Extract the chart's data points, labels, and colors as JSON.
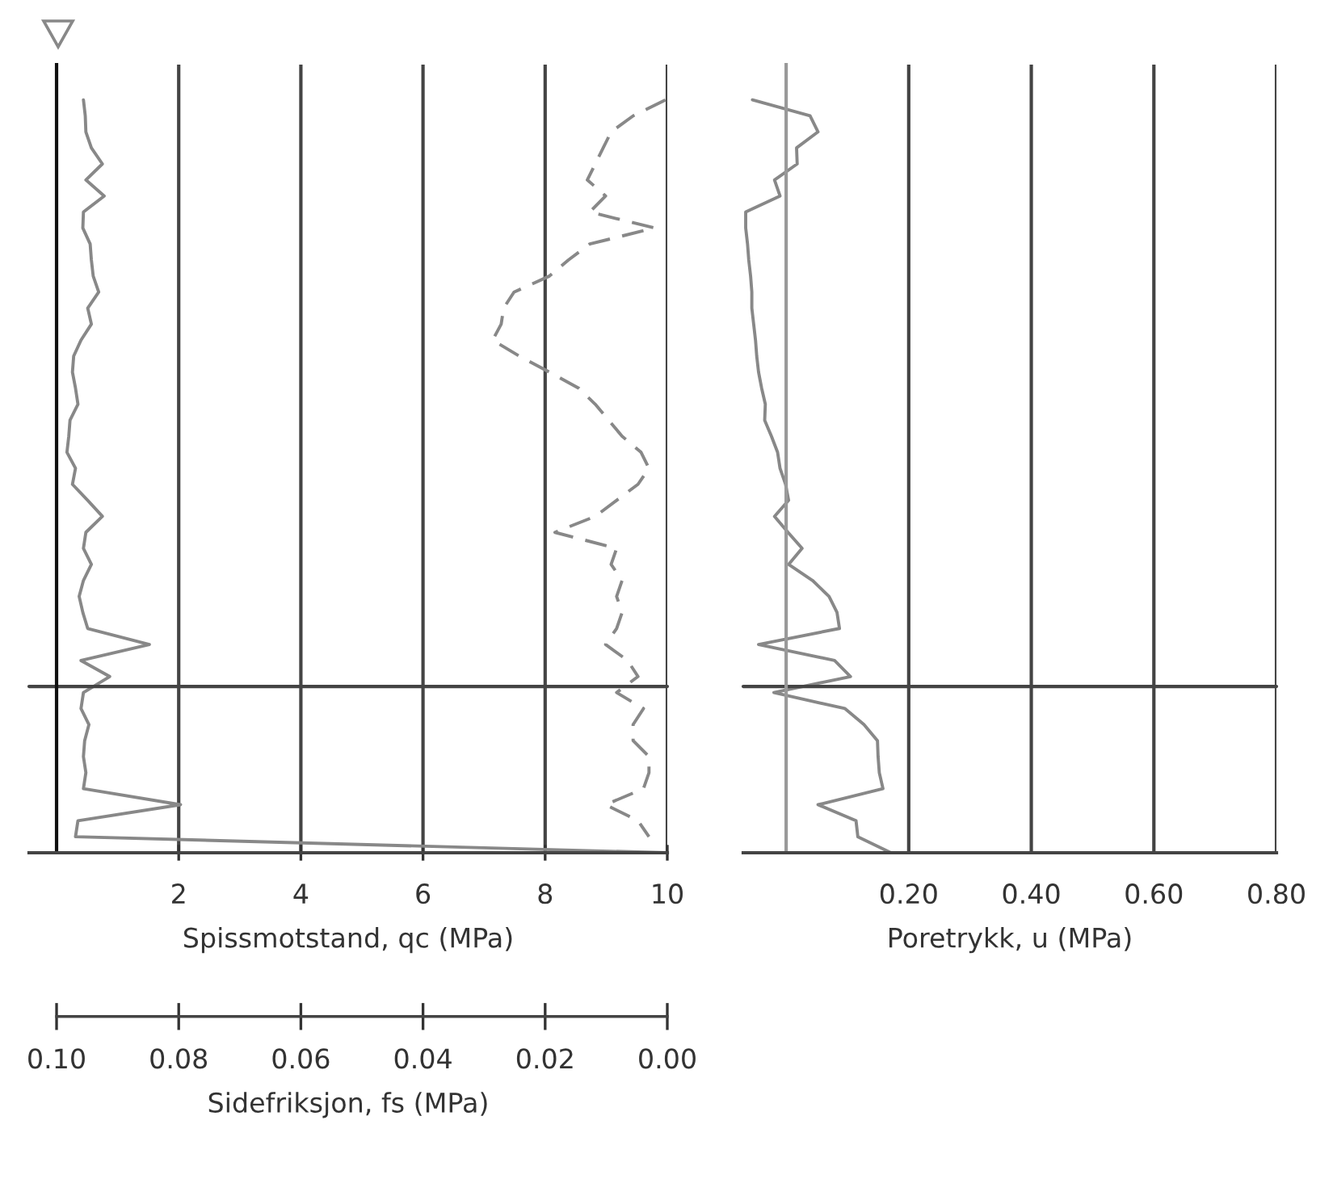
{
  "chart_data": [
    {
      "type": "line",
      "orientation": "horizontal",
      "categories": [
        null,
        null,
        null,
        null,
        null,
        null,
        null,
        null,
        null,
        null,
        null,
        null,
        null,
        null,
        null,
        null,
        null,
        null,
        null,
        null,
        null,
        null,
        null,
        null,
        null,
        null,
        null,
        null,
        null,
        null,
        null,
        null,
        null,
        null,
        null,
        null,
        null,
        null,
        null,
        null,
        null,
        null,
        null,
        null,
        null,
        null,
        null,
        null
      ],
      "series": [
        {
          "color": "#888888",
          "line_style": "solid",
          "values": [
            0.44,
            0.47,
            0.48,
            0.57,
            0.75,
            0.48,
            0.78,
            0.44,
            0.43,
            0.55,
            0.57,
            0.6,
            0.69,
            0.51,
            0.57,
            0.4,
            0.28,
            0.26,
            0.31,
            0.35,
            0.22,
            0.2,
            0.17,
            0.31,
            0.26,
            0.51,
            0.75,
            0.48,
            0.44,
            0.57,
            0.44,
            0.37,
            0.43,
            0.51,
            1.52,
            0.4,
            0.87,
            0.44,
            0.4,
            0.53,
            0.46,
            0.44,
            0.48,
            0.44,
            2.03,
            0.35,
            0.31,
            10
          ]
        },
        {
          "color": "#888888",
          "line_style": "dashed",
          "axis": "x2",
          "values": [
            0.0003,
            0.0056,
            0.0092,
            0.0105,
            0.0118,
            0.0131,
            0.0101,
            0.0127,
            0.0021,
            0.0127,
            0.0162,
            0.0193,
            0.0251,
            0.0268,
            0.0272,
            0.0286,
            0.0242,
            0.0193,
            0.0145,
            0.0118,
            0.0096,
            0.0074,
            0.0043,
            0.003,
            0.0048,
            0.0083,
            0.0118,
            0.0184,
            0.0083,
            0.0092,
            0.0074,
            0.0083,
            0.0074,
            0.0083,
            0.0101,
            0.0065,
            0.0048,
            0.0083,
            0.0039,
            0.0056,
            0.0056,
            0.003,
            0.003,
            0.0039,
            0.0101,
            0.0048,
            0.003,
            null
          ]
        }
      ],
      "xlim": [
        -0.45,
        10
      ],
      "xticks": [
        2,
        4,
        6,
        8,
        10
      ],
      "xlabel": "Spissmotstand, qc (MPa)",
      "x2lim": [
        0.1045,
        0.0
      ],
      "x2ticks": [
        {
          "value": 0.1,
          "label": "0.10"
        },
        {
          "value": 0.08,
          "label": "0.08"
        },
        {
          "value": 0.06,
          "label": "0.06"
        },
        {
          "value": 0.04,
          "label": "0.04"
        },
        {
          "value": 0.02,
          "label": "0.02"
        },
        {
          "value": 0.0,
          "label": "0.00"
        }
      ],
      "x2label": "Sidefriksjon, fs (MPa)",
      "grid": "x"
    },
    {
      "type": "line",
      "orientation": "horizontal",
      "categories": [
        null,
        null,
        null,
        null,
        null,
        null,
        null,
        null,
        null,
        null,
        null,
        null,
        null,
        null,
        null,
        null,
        null,
        null,
        null,
        null,
        null,
        null,
        null,
        null,
        null,
        null,
        null,
        null,
        null,
        null,
        null,
        null,
        null,
        null,
        null,
        null,
        null,
        null,
        null,
        null,
        null,
        null,
        null,
        null,
        null,
        null,
        null,
        null
      ],
      "series": [
        {
          "color": "#888888",
          "line_style": "solid",
          "values": [
            -0.055,
            0.039,
            0.052,
            0.017,
            0.018,
            -0.019,
            -0.01,
            -0.066,
            -0.066,
            -0.063,
            -0.061,
            -0.058,
            -0.056,
            -0.056,
            -0.053,
            -0.05,
            -0.048,
            -0.045,
            -0.04,
            -0.034,
            -0.035,
            -0.024,
            -0.014,
            -0.01,
            -0.001,
            0.004,
            -0.019,
            0.003,
            0.026,
            0.004,
            0.043,
            0.07,
            0.083,
            0.087,
            -0.045,
            0.079,
            0.105,
            -0.02,
            0.096,
            0.127,
            0.149,
            0.15,
            0.152,
            0.158,
            0.052,
            0.114,
            0.117,
            0.171
          ]
        }
      ],
      "xlim": [
        -0.07,
        0.8
      ],
      "xticks": [
        {
          "value": 0.2,
          "label": "0.20"
        },
        {
          "value": 0.4,
          "label": "0.40"
        },
        {
          "value": 0.6,
          "label": "0.60"
        },
        {
          "value": 0.8,
          "label": "0.80"
        }
      ],
      "xlabel": "Poretrykk, u (MPa)",
      "grid": "x"
    }
  ]
}
